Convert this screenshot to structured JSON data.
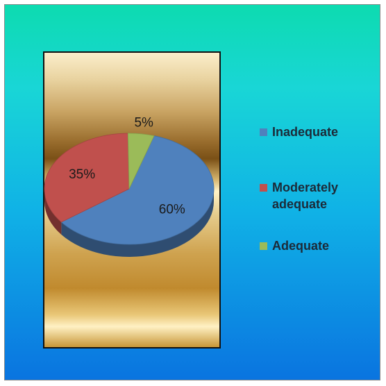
{
  "chart_data": {
    "type": "pie",
    "title": "",
    "slices": [
      {
        "label": "Inadequate",
        "value": 60,
        "display": "60%",
        "color": "#4f81bd"
      },
      {
        "label": "Moderately adequate",
        "value": 35,
        "display": "35%",
        "color": "#c0504d"
      },
      {
        "label": "Adequate",
        "value": 5,
        "display": "5%",
        "color": "#9bbb59"
      }
    ],
    "legend_position": "right",
    "style": "3d-tilted"
  }
}
